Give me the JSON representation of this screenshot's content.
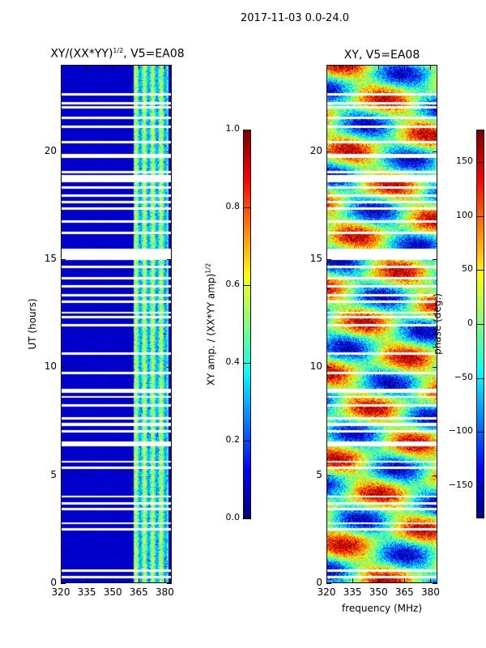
{
  "suptitle": "2017-11-03 0.0-24.0",
  "chart_data": [
    {
      "type": "heatmap",
      "title_main": "XY/(XX*YY)",
      "title_sup": "1/2",
      "title_tail": ", V5=EA08",
      "xlabel": "frequency (MHz)",
      "ylabel": "UT (hours)",
      "xlim": [
        320,
        384
      ],
      "ylim": [
        0,
        24
      ],
      "xticks": [
        "320",
        "335",
        "350",
        "365",
        "380"
      ],
      "xtick_values": [
        320,
        335,
        350,
        365,
        380
      ],
      "yticks": [
        "0",
        "5",
        "10",
        "15",
        "20"
      ],
      "ytick_values": [
        0,
        5,
        10,
        15,
        20
      ],
      "colorbar": {
        "label_main": "XY amp. / (XX*YY amp)",
        "label_sup": "1/2",
        "range": [
          0,
          1
        ],
        "ticks": [
          "0.0",
          "0.2",
          "0.4",
          "0.6",
          "0.8",
          "1.0"
        ],
        "tick_values": [
          0,
          0.2,
          0.4,
          0.6,
          0.8,
          1.0
        ],
        "colormap": "jet"
      },
      "background_value": 0.05,
      "signal_band_mhz": [
        362,
        382
      ],
      "signal_value_range": [
        0.3,
        0.65
      ]
    },
    {
      "type": "heatmap",
      "title": "XY, V5=EA08",
      "xlim": [
        320,
        384
      ],
      "ylim": [
        0,
        24
      ],
      "xticks": [
        "320",
        "335",
        "350",
        "365",
        "380"
      ],
      "xtick_values": [
        320,
        335,
        350,
        365,
        380
      ],
      "yticks": [
        "0",
        "5",
        "10",
        "15",
        "20"
      ],
      "ytick_values": [
        0,
        5,
        10,
        15,
        20
      ],
      "colorbar": {
        "label": "phase (deg.)",
        "range": [
          -180,
          180
        ],
        "ticks": [
          "−150",
          "−100",
          "−50",
          "0",
          "50",
          "100",
          "150"
        ],
        "tick_values": [
          -150,
          -100,
          -50,
          0,
          50,
          100,
          150
        ],
        "colormap": "jet"
      }
    }
  ],
  "flagged_hours": [
    [
      0.25,
      0.35
    ],
    [
      0.55,
      0.65
    ],
    [
      2.45,
      2.55
    ],
    [
      2.75,
      2.85
    ],
    [
      3.4,
      3.5
    ],
    [
      3.65,
      3.75
    ],
    [
      4.0,
      4.05
    ],
    [
      5.3,
      5.4
    ],
    [
      5.6,
      5.7
    ],
    [
      6.35,
      6.6
    ],
    [
      7.0,
      7.1
    ],
    [
      7.3,
      7.45
    ],
    [
      7.6,
      7.7
    ],
    [
      8.2,
      8.3
    ],
    [
      8.6,
      8.7
    ],
    [
      8.85,
      9.0
    ],
    [
      9.7,
      9.8
    ],
    [
      10.6,
      10.7
    ],
    [
      11.9,
      12.0
    ],
    [
      12.3,
      12.4
    ],
    [
      12.5,
      12.6
    ],
    [
      13.0,
      13.1
    ],
    [
      13.3,
      13.4
    ],
    [
      13.7,
      13.8
    ],
    [
      14.1,
      14.2
    ],
    [
      14.6,
      14.7
    ],
    [
      15.0,
      15.5
    ],
    [
      16.2,
      16.3
    ],
    [
      16.7,
      16.8
    ],
    [
      17.3,
      17.4
    ],
    [
      17.6,
      17.7
    ],
    [
      17.9,
      18.0
    ],
    [
      18.3,
      18.4
    ],
    [
      18.6,
      18.9
    ],
    [
      19.0,
      19.1
    ],
    [
      19.7,
      19.9
    ],
    [
      20.4,
      20.5
    ],
    [
      21.1,
      21.2
    ],
    [
      21.5,
      21.6
    ],
    [
      22.0,
      22.1
    ],
    [
      22.2,
      22.3
    ],
    [
      22.6,
      22.7
    ]
  ]
}
